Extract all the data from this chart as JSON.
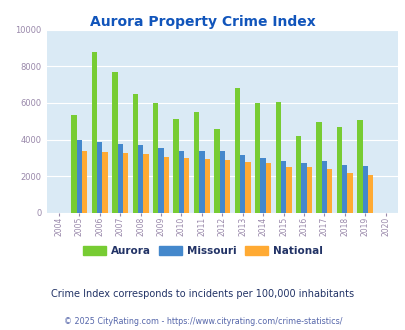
{
  "title": "Aurora Property Crime Index",
  "years": [
    2004,
    2005,
    2006,
    2007,
    2008,
    2009,
    2010,
    2011,
    2012,
    2013,
    2014,
    2015,
    2016,
    2017,
    2018,
    2019,
    2020
  ],
  "aurora": [
    null,
    5350,
    8800,
    7700,
    6500,
    5980,
    5150,
    5480,
    4560,
    6800,
    6020,
    6070,
    4200,
    4980,
    4680,
    5050,
    null
  ],
  "missouri": [
    null,
    4000,
    3870,
    3750,
    3700,
    3550,
    3400,
    3380,
    3350,
    3150,
    2980,
    2820,
    2740,
    2820,
    2620,
    2580,
    null
  ],
  "national": [
    null,
    3400,
    3330,
    3280,
    3230,
    3060,
    2990,
    2950,
    2870,
    2790,
    2720,
    2530,
    2490,
    2410,
    2200,
    2080,
    null
  ],
  "aurora_color": "#77cc33",
  "missouri_color": "#4488cc",
  "national_color": "#ffaa33",
  "bg_color": "#daeaf5",
  "ylim": [
    0,
    10000
  ],
  "yticks": [
    0,
    2000,
    4000,
    6000,
    8000,
    10000
  ],
  "subtitle": "Crime Index corresponds to incidents per 100,000 inhabitants",
  "footer": "© 2025 CityRating.com - https://www.cityrating.com/crime-statistics/",
  "title_color": "#1155bb",
  "subtitle_color": "#223366",
  "footer_color": "#5566aa",
  "tick_color": "#9988aa"
}
